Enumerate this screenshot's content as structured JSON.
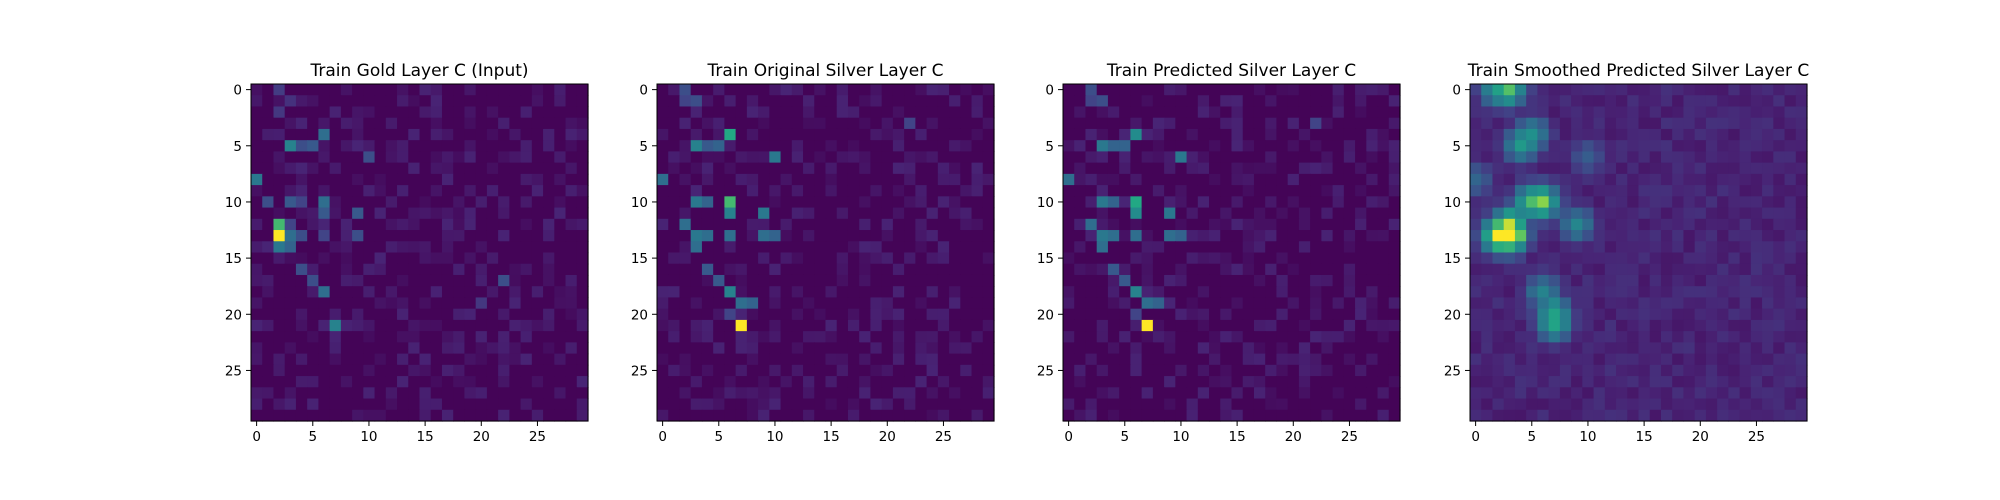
{
  "chart_data": [
    {
      "type": "heatmap",
      "title": "Train Gold Layer C (Input)",
      "grid_size": 30,
      "xticks": [
        0,
        5,
        10,
        15,
        20,
        25
      ],
      "yticks": [
        0,
        5,
        10,
        15,
        20,
        25
      ],
      "colormap": "viridis",
      "hot_cells": [
        {
          "x": 2,
          "y": 0,
          "v": 0.22
        },
        {
          "x": 3,
          "y": 1,
          "v": 0.18
        },
        {
          "x": 2,
          "y": 2,
          "v": 0.2
        },
        {
          "x": 3,
          "y": 5,
          "v": 0.55
        },
        {
          "x": 4,
          "y": 5,
          "v": 0.3
        },
        {
          "x": 5,
          "y": 5,
          "v": 0.35
        },
        {
          "x": 6,
          "y": 4,
          "v": 0.45
        },
        {
          "x": 10,
          "y": 6,
          "v": 0.3
        },
        {
          "x": 0,
          "y": 8,
          "v": 0.5
        },
        {
          "x": 1,
          "y": 10,
          "v": 0.3
        },
        {
          "x": 3,
          "y": 10,
          "v": 0.35
        },
        {
          "x": 4,
          "y": 10,
          "v": 0.25
        },
        {
          "x": 6,
          "y": 10,
          "v": 0.45
        },
        {
          "x": 6,
          "y": 11,
          "v": 0.35
        },
        {
          "x": 9,
          "y": 11,
          "v": 0.35
        },
        {
          "x": 2,
          "y": 12,
          "v": 0.8
        },
        {
          "x": 3,
          "y": 12,
          "v": 0.25
        },
        {
          "x": 2,
          "y": 13,
          "v": 1.0
        },
        {
          "x": 3,
          "y": 13,
          "v": 0.45
        },
        {
          "x": 4,
          "y": 13,
          "v": 0.3
        },
        {
          "x": 6,
          "y": 13,
          "v": 0.25
        },
        {
          "x": 9,
          "y": 13,
          "v": 0.3
        },
        {
          "x": 2,
          "y": 14,
          "v": 0.5
        },
        {
          "x": 3,
          "y": 14,
          "v": 0.4
        },
        {
          "x": 4,
          "y": 16,
          "v": 0.3
        },
        {
          "x": 5,
          "y": 17,
          "v": 0.3
        },
        {
          "x": 6,
          "y": 18,
          "v": 0.45
        },
        {
          "x": 7,
          "y": 21,
          "v": 0.55
        },
        {
          "x": 22,
          "y": 17,
          "v": 0.3
        },
        {
          "x": 20,
          "y": 19,
          "v": 0.2
        }
      ]
    },
    {
      "type": "heatmap",
      "title": "Train Original Silver Layer C",
      "grid_size": 30,
      "xticks": [
        0,
        5,
        10,
        15,
        20,
        25
      ],
      "yticks": [
        0,
        5,
        10,
        15,
        20,
        25
      ],
      "colormap": "viridis",
      "hot_cells": [
        {
          "x": 2,
          "y": 0,
          "v": 0.3
        },
        {
          "x": 3,
          "y": 1,
          "v": 0.3
        },
        {
          "x": 2,
          "y": 1,
          "v": 0.25
        },
        {
          "x": 3,
          "y": 5,
          "v": 0.55
        },
        {
          "x": 4,
          "y": 5,
          "v": 0.35
        },
        {
          "x": 5,
          "y": 5,
          "v": 0.4
        },
        {
          "x": 6,
          "y": 4,
          "v": 0.75
        },
        {
          "x": 10,
          "y": 6,
          "v": 0.5
        },
        {
          "x": 22,
          "y": 3,
          "v": 0.25
        },
        {
          "x": 0,
          "y": 8,
          "v": 0.45
        },
        {
          "x": 3,
          "y": 10,
          "v": 0.5
        },
        {
          "x": 4,
          "y": 10,
          "v": 0.4
        },
        {
          "x": 6,
          "y": 10,
          "v": 0.8
        },
        {
          "x": 6,
          "y": 11,
          "v": 0.55
        },
        {
          "x": 9,
          "y": 11,
          "v": 0.5
        },
        {
          "x": 2,
          "y": 12,
          "v": 0.45
        },
        {
          "x": 3,
          "y": 13,
          "v": 0.5
        },
        {
          "x": 4,
          "y": 13,
          "v": 0.45
        },
        {
          "x": 6,
          "y": 13,
          "v": 0.45
        },
        {
          "x": 9,
          "y": 13,
          "v": 0.45
        },
        {
          "x": 10,
          "y": 13,
          "v": 0.4
        },
        {
          "x": 3,
          "y": 14,
          "v": 0.45
        },
        {
          "x": 4,
          "y": 16,
          "v": 0.35
        },
        {
          "x": 5,
          "y": 17,
          "v": 0.35
        },
        {
          "x": 6,
          "y": 18,
          "v": 0.55
        },
        {
          "x": 7,
          "y": 19,
          "v": 0.45
        },
        {
          "x": 8,
          "y": 19,
          "v": 0.4
        },
        {
          "x": 7,
          "y": 21,
          "v": 1.0
        },
        {
          "x": 6,
          "y": 20,
          "v": 0.25
        }
      ]
    },
    {
      "type": "heatmap",
      "title": "Train Predicted Silver Layer C",
      "grid_size": 30,
      "xticks": [
        0,
        5,
        10,
        15,
        20,
        25
      ],
      "yticks": [
        0,
        5,
        10,
        15,
        20,
        25
      ],
      "colormap": "viridis",
      "hot_cells": [
        {
          "x": 2,
          "y": 0,
          "v": 0.3
        },
        {
          "x": 3,
          "y": 1,
          "v": 0.3
        },
        {
          "x": 2,
          "y": 1,
          "v": 0.25
        },
        {
          "x": 3,
          "y": 5,
          "v": 0.5
        },
        {
          "x": 4,
          "y": 5,
          "v": 0.4
        },
        {
          "x": 5,
          "y": 5,
          "v": 0.4
        },
        {
          "x": 6,
          "y": 4,
          "v": 0.6
        },
        {
          "x": 10,
          "y": 6,
          "v": 0.5
        },
        {
          "x": 22,
          "y": 3,
          "v": 0.25
        },
        {
          "x": 0,
          "y": 8,
          "v": 0.45
        },
        {
          "x": 3,
          "y": 10,
          "v": 0.5
        },
        {
          "x": 4,
          "y": 10,
          "v": 0.4
        },
        {
          "x": 6,
          "y": 10,
          "v": 0.75
        },
        {
          "x": 6,
          "y": 11,
          "v": 0.6
        },
        {
          "x": 9,
          "y": 11,
          "v": 0.5
        },
        {
          "x": 2,
          "y": 12,
          "v": 0.45
        },
        {
          "x": 3,
          "y": 13,
          "v": 0.5
        },
        {
          "x": 4,
          "y": 13,
          "v": 0.45
        },
        {
          "x": 6,
          "y": 13,
          "v": 0.45
        },
        {
          "x": 9,
          "y": 13,
          "v": 0.45
        },
        {
          "x": 10,
          "y": 13,
          "v": 0.4
        },
        {
          "x": 3,
          "y": 14,
          "v": 0.45
        },
        {
          "x": 4,
          "y": 16,
          "v": 0.35
        },
        {
          "x": 5,
          "y": 17,
          "v": 0.35
        },
        {
          "x": 6,
          "y": 18,
          "v": 0.55
        },
        {
          "x": 7,
          "y": 19,
          "v": 0.45
        },
        {
          "x": 8,
          "y": 19,
          "v": 0.4
        },
        {
          "x": 7,
          "y": 21,
          "v": 1.0
        },
        {
          "x": 6,
          "y": 20,
          "v": 0.25
        }
      ]
    },
    {
      "type": "heatmap",
      "title": "Train Smoothed Predicted Silver Layer C",
      "grid_size": 30,
      "xticks": [
        0,
        5,
        10,
        15,
        20,
        25
      ],
      "yticks": [
        0,
        5,
        10,
        15,
        20,
        25
      ],
      "colormap": "viridis",
      "smoothed": true,
      "hot_cells": [
        {
          "x": 2,
          "y": 0,
          "v": 0.7
        },
        {
          "x": 3,
          "y": 0,
          "v": 0.7
        },
        {
          "x": 5,
          "y": 4,
          "v": 0.6
        },
        {
          "x": 4,
          "y": 5,
          "v": 0.6
        },
        {
          "x": 0,
          "y": 8,
          "v": 0.4
        },
        {
          "x": 10,
          "y": 6,
          "v": 0.35
        },
        {
          "x": 5,
          "y": 10,
          "v": 0.8
        },
        {
          "x": 6,
          "y": 10,
          "v": 0.75
        },
        {
          "x": 3,
          "y": 12,
          "v": 0.85
        },
        {
          "x": 3,
          "y": 13,
          "v": 1.0
        },
        {
          "x": 2,
          "y": 13,
          "v": 0.85
        },
        {
          "x": 9,
          "y": 12,
          "v": 0.55
        },
        {
          "x": 6,
          "y": 18,
          "v": 0.55
        },
        {
          "x": 7,
          "y": 20,
          "v": 0.7
        },
        {
          "x": 7,
          "y": 21,
          "v": 0.6
        }
      ]
    }
  ]
}
